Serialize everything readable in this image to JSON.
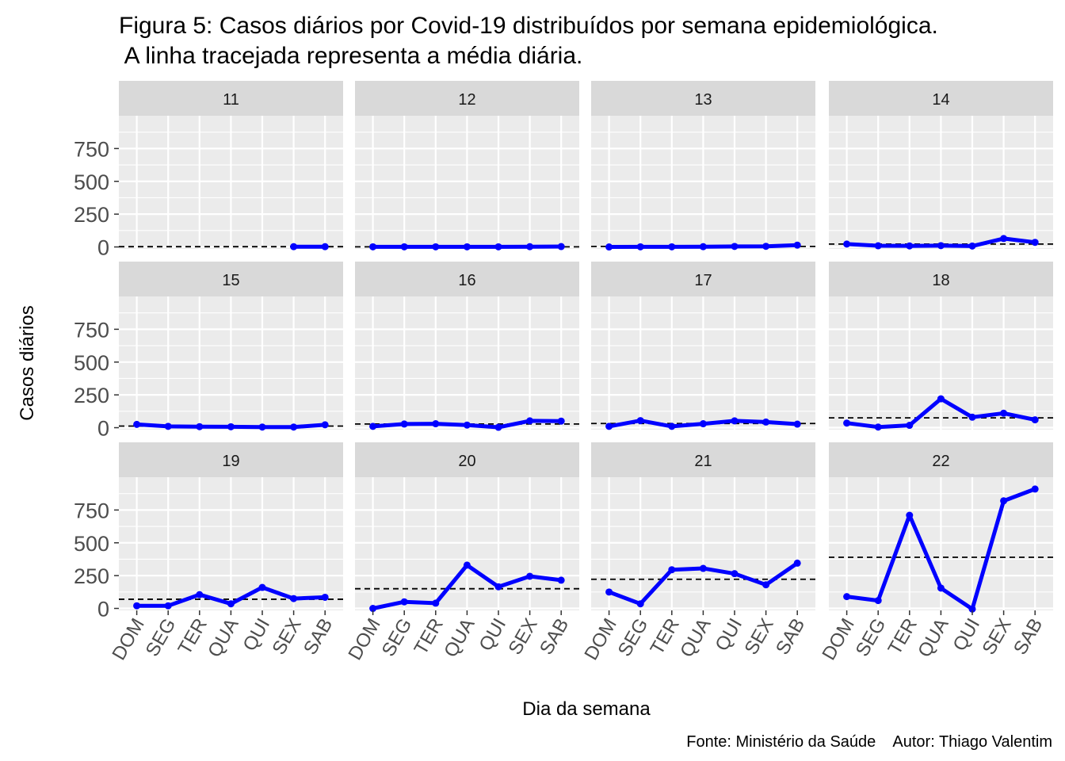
{
  "chart_data": {
    "type": "line",
    "title_lines": [
      "Figura 5: Casos diários por Covid-19 distribuídos por semana epidemiológica.",
      " A linha tracejada representa a média diária."
    ],
    "xlabel": "Dia da semana",
    "ylabel": "Casos diários",
    "caption": "Fonte: Ministério da Saúde    Autor: Thiago Valentim",
    "categories": [
      "DOM",
      "SEG",
      "TER",
      "QUA",
      "QUI",
      "SEX",
      "SAB"
    ],
    "yticks": [
      0,
      250,
      500,
      750
    ],
    "ylim": [
      -15,
      1000
    ],
    "grid": true,
    "line_color": "#0000FF",
    "panel_bg": "#EBEBEB",
    "strip_bg": "#D9D9D9",
    "panels": [
      {
        "label": "11",
        "values": [
          null,
          null,
          null,
          null,
          null,
          2,
          2
        ],
        "mean": 2
      },
      {
        "label": "12",
        "values": [
          1,
          1,
          1,
          1,
          1,
          2,
          3
        ],
        "mean": 1
      },
      {
        "label": "13",
        "values": [
          0,
          1,
          1,
          2,
          4,
          5,
          14
        ],
        "mean": 4
      },
      {
        "label": "14",
        "values": [
          22,
          9,
          8,
          10,
          7,
          64,
          35
        ],
        "mean": 22
      },
      {
        "label": "15",
        "values": [
          25,
          10,
          8,
          7,
          5,
          5,
          22
        ],
        "mean": 12
      },
      {
        "label": "16",
        "values": [
          10,
          28,
          30,
          20,
          3,
          52,
          50
        ],
        "mean": 28
      },
      {
        "label": "17",
        "values": [
          10,
          54,
          10,
          30,
          52,
          43,
          27
        ],
        "mean": 32
      },
      {
        "label": "18",
        "values": [
          35,
          5,
          18,
          220,
          80,
          110,
          60
        ],
        "mean": 75
      },
      {
        "label": "19",
        "values": [
          20,
          20,
          105,
          35,
          160,
          75,
          85
        ],
        "mean": 70
      },
      {
        "label": "20",
        "values": [
          0,
          50,
          40,
          330,
          165,
          245,
          215
        ],
        "mean": 150
      },
      {
        "label": "21",
        "values": [
          125,
          35,
          295,
          305,
          265,
          180,
          345
        ],
        "mean": 222
      },
      {
        "label": "22",
        "values": [
          90,
          60,
          710,
          155,
          -5,
          820,
          910
        ],
        "mean": 390
      }
    ]
  }
}
